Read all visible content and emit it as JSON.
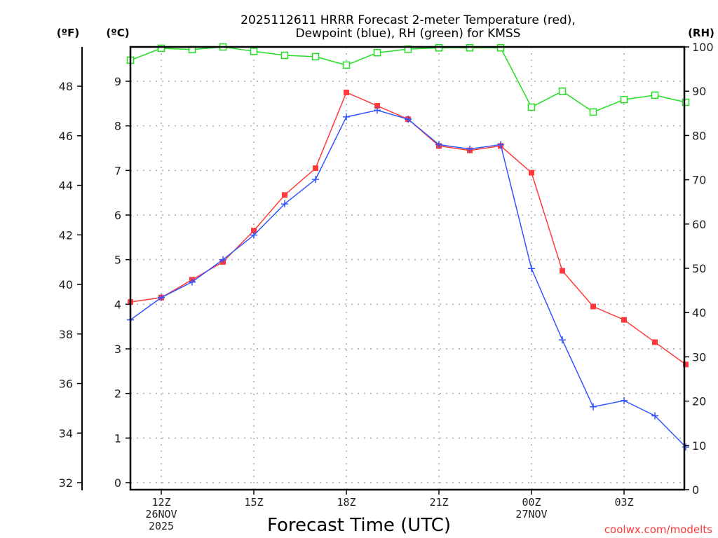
{
  "chart_data": {
    "type": "line",
    "title_line1": "2025112611 HRRR Forecast 2-meter Temperature (red),",
    "title_line2": "Dewpoint (blue), RH (green) for KMSS",
    "xlabel": "Forecast Time (UTC)",
    "credit": "coolwx.com/modelts",
    "unit_labels": {
      "fahrenheit": "(ºF)",
      "celsius": "(ºC)",
      "rh": "(RH)"
    },
    "x": [
      "11Z",
      "12Z",
      "13Z",
      "14Z",
      "15Z",
      "16Z",
      "17Z",
      "18Z",
      "19Z",
      "20Z",
      "21Z",
      "22Z",
      "23Z",
      "00Z",
      "01Z",
      "02Z",
      "03Z",
      "04Z",
      "05Z"
    ],
    "x_ticks": [
      {
        "hour_index": 1,
        "lines": [
          "12Z",
          "26NOV",
          "2025"
        ]
      },
      {
        "hour_index": 4,
        "lines": [
          "15Z"
        ]
      },
      {
        "hour_index": 7,
        "lines": [
          "18Z"
        ]
      },
      {
        "hour_index": 10,
        "lines": [
          "21Z"
        ]
      },
      {
        "hour_index": 13,
        "lines": [
          "00Z",
          "27NOV"
        ]
      },
      {
        "hour_index": 16,
        "lines": [
          "03Z"
        ]
      }
    ],
    "celsius_axis": {
      "range": [
        -0.15,
        9.75
      ],
      "ticks": [
        0,
        1,
        2,
        3,
        4,
        5,
        6,
        7,
        8,
        9
      ]
    },
    "fahrenheit_axis": {
      "ticks": [
        32,
        34,
        36,
        38,
        40,
        42,
        44,
        46,
        48
      ]
    },
    "rh_axis": {
      "range": [
        0,
        100
      ],
      "ticks": [
        0,
        10,
        20,
        30,
        40,
        50,
        60,
        70,
        80,
        90,
        100
      ]
    },
    "grid": true,
    "series": [
      {
        "name": "Temperature",
        "unit": "C",
        "axis": "celsius",
        "color": "#ff3a3a",
        "marker": "filled-square",
        "values": [
          4.05,
          4.15,
          4.55,
          4.95,
          5.65,
          6.45,
          7.05,
          8.75,
          8.45,
          8.15,
          7.55,
          7.45,
          7.55,
          6.95,
          4.75,
          3.95,
          3.65,
          3.15,
          2.65
        ]
      },
      {
        "name": "Dewpoint",
        "unit": "C",
        "axis": "celsius",
        "color": "#3355ff",
        "marker": "plus",
        "values": [
          3.65,
          4.15,
          4.5,
          5.0,
          5.55,
          6.25,
          6.8,
          8.2,
          8.35,
          8.15,
          7.58,
          7.48,
          7.58,
          4.8,
          3.2,
          1.7,
          1.84,
          1.5,
          0.8
        ]
      },
      {
        "name": "RH",
        "unit": "%",
        "axis": "rh",
        "color": "#22dd22",
        "marker": "open-square",
        "values": [
          97,
          99.7,
          99.4,
          100,
          99,
          98.1,
          97.8,
          95.9,
          98.7,
          99.5,
          99.8,
          99.8,
          99.8,
          86.4,
          90,
          85.3,
          88.1,
          89.1,
          87.5
        ]
      }
    ]
  }
}
